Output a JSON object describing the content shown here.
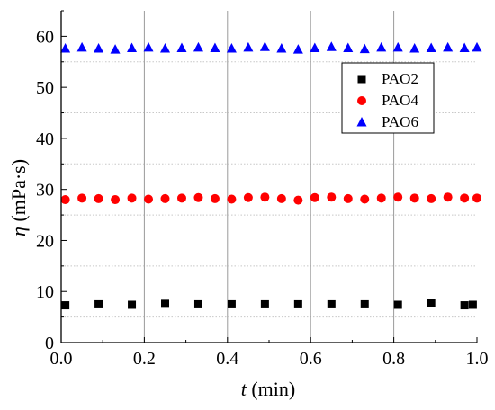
{
  "chart_data": {
    "type": "scatter",
    "xlabel_var": "t",
    "xlabel_unit": "(min)",
    "ylabel_var": "η",
    "ylabel_unit": "(mPa·s)",
    "xlim": [
      0,
      1.0
    ],
    "ylim": [
      0,
      65
    ],
    "xticks": [
      "0.0",
      "0.2",
      "0.4",
      "0.6",
      "0.8",
      "1.0"
    ],
    "yticks": [
      "0",
      "10",
      "20",
      "30",
      "40",
      "50",
      "60"
    ],
    "grid": {
      "vertical_major": true,
      "horizontal_minor_dotted": true
    },
    "legend_position": "upper-right",
    "series": [
      {
        "name": "PAO2",
        "marker": "square",
        "color": "#000000",
        "points": [
          [
            0.01,
            7.3
          ],
          [
            0.09,
            7.5
          ],
          [
            0.17,
            7.4
          ],
          [
            0.25,
            7.6
          ],
          [
            0.33,
            7.5
          ],
          [
            0.41,
            7.5
          ],
          [
            0.49,
            7.5
          ],
          [
            0.57,
            7.5
          ],
          [
            0.65,
            7.5
          ],
          [
            0.73,
            7.5
          ],
          [
            0.81,
            7.4
          ],
          [
            0.89,
            7.7
          ],
          [
            0.97,
            7.3
          ],
          [
            0.99,
            7.4
          ]
        ]
      },
      {
        "name": "PAO4",
        "marker": "circle",
        "color": "#ff0000",
        "points": [
          [
            0.01,
            28.0
          ],
          [
            0.05,
            28.3
          ],
          [
            0.09,
            28.2
          ],
          [
            0.13,
            28.0
          ],
          [
            0.17,
            28.3
          ],
          [
            0.21,
            28.1
          ],
          [
            0.25,
            28.2
          ],
          [
            0.29,
            28.3
          ],
          [
            0.33,
            28.4
          ],
          [
            0.37,
            28.2
          ],
          [
            0.41,
            28.1
          ],
          [
            0.45,
            28.4
          ],
          [
            0.49,
            28.5
          ],
          [
            0.53,
            28.2
          ],
          [
            0.57,
            27.9
          ],
          [
            0.61,
            28.4
          ],
          [
            0.65,
            28.5
          ],
          [
            0.69,
            28.2
          ],
          [
            0.73,
            28.1
          ],
          [
            0.77,
            28.3
          ],
          [
            0.81,
            28.5
          ],
          [
            0.85,
            28.3
          ],
          [
            0.89,
            28.2
          ],
          [
            0.93,
            28.5
          ],
          [
            0.97,
            28.3
          ],
          [
            1.0,
            28.3
          ]
        ]
      },
      {
        "name": "PAO6",
        "marker": "triangle",
        "color": "#0000ff",
        "points": [
          [
            0.01,
            57.6
          ],
          [
            0.05,
            57.8
          ],
          [
            0.09,
            57.6
          ],
          [
            0.13,
            57.4
          ],
          [
            0.17,
            57.7
          ],
          [
            0.21,
            57.8
          ],
          [
            0.25,
            57.6
          ],
          [
            0.29,
            57.7
          ],
          [
            0.33,
            57.8
          ],
          [
            0.37,
            57.7
          ],
          [
            0.41,
            57.6
          ],
          [
            0.45,
            57.8
          ],
          [
            0.49,
            57.9
          ],
          [
            0.53,
            57.6
          ],
          [
            0.57,
            57.4
          ],
          [
            0.61,
            57.7
          ],
          [
            0.65,
            57.9
          ],
          [
            0.69,
            57.7
          ],
          [
            0.73,
            57.5
          ],
          [
            0.77,
            57.8
          ],
          [
            0.81,
            57.8
          ],
          [
            0.85,
            57.6
          ],
          [
            0.89,
            57.7
          ],
          [
            0.93,
            57.8
          ],
          [
            0.97,
            57.7
          ],
          [
            1.0,
            57.8
          ]
        ]
      }
    ]
  }
}
